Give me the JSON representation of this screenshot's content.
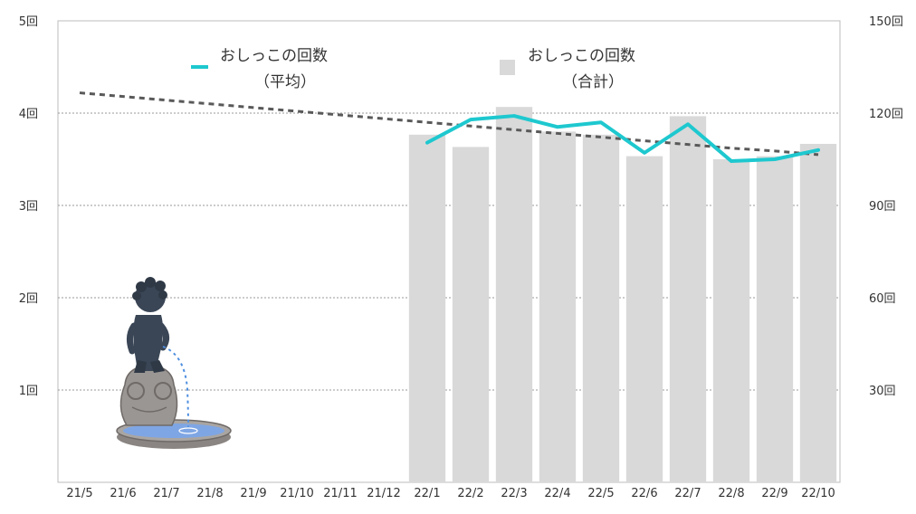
{
  "chart_data": {
    "type": "bar",
    "categories": [
      "21/5",
      "21/6",
      "21/7",
      "21/8",
      "21/9",
      "21/10",
      "21/11",
      "21/12",
      "22/1",
      "22/2",
      "22/3",
      "22/4",
      "22/5",
      "22/6",
      "22/7",
      "22/8",
      "22/9",
      "22/10"
    ],
    "series": [
      {
        "name": "おしっこの回数（合計）",
        "type": "bar",
        "axis": "right",
        "values": [
          null,
          null,
          null,
          null,
          null,
          null,
          null,
          null,
          113,
          109,
          122,
          114,
          113,
          106,
          119,
          105,
          106,
          110
        ]
      },
      {
        "name": "おしっこの回数（平均）",
        "type": "line",
        "axis": "left",
        "values": [
          null,
          null,
          null,
          null,
          null,
          null,
          null,
          null,
          3.68,
          3.93,
          3.97,
          3.85,
          3.9,
          3.57,
          3.88,
          3.48,
          3.5,
          3.6
        ]
      },
      {
        "name": "trend",
        "type": "line",
        "style": "dashed",
        "axis": "left",
        "values": [
          4.22,
          4.18,
          4.14,
          4.1,
          4.06,
          4.02,
          3.98,
          3.94,
          3.9,
          3.86,
          3.82,
          3.78,
          3.74,
          3.7,
          3.66,
          3.62,
          3.59,
          3.55
        ]
      }
    ],
    "y_left": {
      "min": 0,
      "max": 5,
      "ticks": [
        "",
        "1回",
        "2回",
        "3回",
        "4回",
        "5回"
      ]
    },
    "y_right": {
      "min": 0,
      "max": 150,
      "ticks": [
        "",
        "30回",
        "60回",
        "90回",
        "120回",
        "150回"
      ]
    },
    "legend": {
      "line_label_1": "おしっこの回数",
      "line_label_2": "（平均）",
      "bar_label_1": "おしっこの回数",
      "bar_label_2": "（合計）",
      "position": "top"
    },
    "grid": true
  },
  "colors": {
    "bar": "#d9d9d9",
    "line": "#1ec8cf",
    "trend": "#595959",
    "grid": "#9a9a9a",
    "axis": "#bdbdbd"
  },
  "illustration": "manneken-pis-fountain-illustration"
}
